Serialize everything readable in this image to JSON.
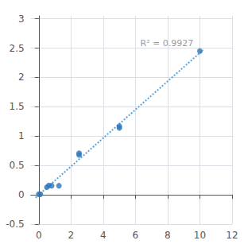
{
  "chart_data": {
    "type": "scatter",
    "series": [
      {
        "type": "scatter",
        "color": "#2e75b6",
        "x": [
          0.0,
          0.1,
          0.5,
          0.625,
          0.8,
          1.25,
          2.5,
          2.5,
          5.0,
          5.0,
          10.0
        ],
        "values": [
          0.01,
          0.01,
          0.13,
          0.16,
          0.155,
          0.155,
          0.68,
          0.71,
          1.14,
          1.17,
          2.45
        ]
      },
      {
        "type": "line",
        "line_style": "dotted",
        "color": "#5ba3d9",
        "x": [
          -0.2,
          10.2
        ],
        "values": [
          -0.0484,
          2.4684
        ]
      }
    ],
    "annotations": [
      {
        "text": "R² = 0.9927",
        "x": 6.3,
        "y": 2.58
      }
    ],
    "xlim": [
      -0.5,
      12
    ],
    "ylim": [
      -0.5,
      3.05
    ],
    "xticks": [
      0,
      2,
      4,
      6,
      8,
      10,
      12
    ],
    "yticks": [
      -0.5,
      0,
      0.5,
      1,
      1.5,
      2,
      2.5,
      3
    ],
    "grid": true
  }
}
